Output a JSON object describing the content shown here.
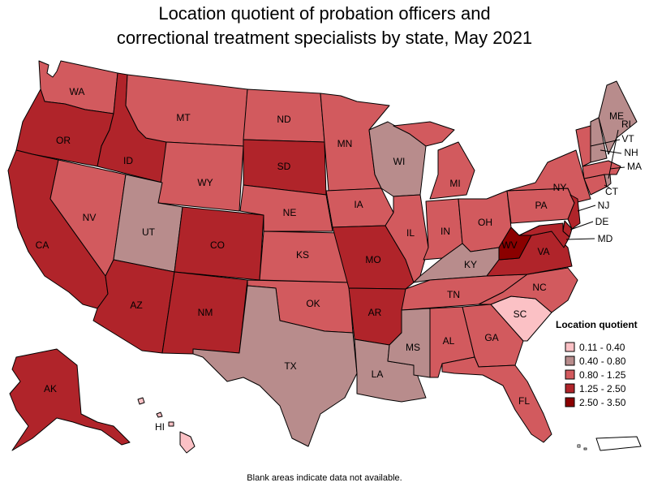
{
  "title_line1": "Location quotient of probation officers and",
  "title_line2": "correctional treatment specialists by state, May 2021",
  "note": "Blank areas indicate data not available.",
  "colors": {
    "c1": "#fbc1c5",
    "c2": "#b88c8c",
    "c3": "#d25a5e",
    "c4": "#b0242a",
    "c5": "#8b0000"
  },
  "legend": {
    "title": "Location quotient",
    "items": [
      {
        "label": "0.11 - 0.40",
        "color": "#fbc1c5"
      },
      {
        "label": "0.40 - 0.80",
        "color": "#b88c8c"
      },
      {
        "label": "0.80 - 1.25",
        "color": "#d25a5e"
      },
      {
        "label": "1.25 - 2.50",
        "color": "#b0242a"
      },
      {
        "label": "2.50 - 3.50",
        "color": "#8b0000"
      }
    ]
  },
  "states": {
    "WA": {
      "label": "WA",
      "class": "0.80 - 1.25"
    },
    "OR": {
      "label": "OR",
      "class": "1.25 - 2.50"
    },
    "CA": {
      "label": "CA",
      "class": "1.25 - 2.50"
    },
    "ID": {
      "label": "ID",
      "class": "1.25 - 2.50"
    },
    "NV": {
      "label": "NV",
      "class": "0.80 - 1.25"
    },
    "MT": {
      "label": "MT",
      "class": "0.80 - 1.25"
    },
    "WY": {
      "label": "WY",
      "class": "0.80 - 1.25"
    },
    "UT": {
      "label": "UT",
      "class": "0.40 - 0.80"
    },
    "AZ": {
      "label": "AZ",
      "class": "1.25 - 2.50"
    },
    "CO": {
      "label": "CO",
      "class": "1.25 - 2.50"
    },
    "NM": {
      "label": "NM",
      "class": "1.25 - 2.50"
    },
    "ND": {
      "label": "ND",
      "class": "0.80 - 1.25"
    },
    "SD": {
      "label": "SD",
      "class": "1.25 - 2.50"
    },
    "NE": {
      "label": "NE",
      "class": "0.80 - 1.25"
    },
    "KS": {
      "label": "KS",
      "class": "0.80 - 1.25"
    },
    "OK": {
      "label": "OK",
      "class": "0.80 - 1.25"
    },
    "TX": {
      "label": "TX",
      "class": "0.40 - 0.80"
    },
    "MN": {
      "label": "MN",
      "class": "0.80 - 1.25"
    },
    "IA": {
      "label": "IA",
      "class": "0.80 - 1.25"
    },
    "MO": {
      "label": "MO",
      "class": "1.25 - 2.50"
    },
    "AR": {
      "label": "AR",
      "class": "1.25 - 2.50"
    },
    "LA": {
      "label": "LA",
      "class": "0.40 - 0.80"
    },
    "WI": {
      "label": "WI",
      "class": "0.40 - 0.80"
    },
    "IL": {
      "label": "IL",
      "class": "0.80 - 1.25"
    },
    "MI": {
      "label": "MI",
      "class": "0.80 - 1.25"
    },
    "IN": {
      "label": "IN",
      "class": "0.80 - 1.25"
    },
    "OH": {
      "label": "OH",
      "class": "0.80 - 1.25"
    },
    "KY": {
      "label": "KY",
      "class": "0.40 - 0.80"
    },
    "TN": {
      "label": "TN",
      "class": "0.80 - 1.25"
    },
    "MS": {
      "label": "MS",
      "class": "0.40 - 0.80"
    },
    "AL": {
      "label": "AL",
      "class": "0.80 - 1.25"
    },
    "GA": {
      "label": "GA",
      "class": "0.80 - 1.25"
    },
    "FL": {
      "label": "FL",
      "class": "0.80 - 1.25"
    },
    "SC": {
      "label": "SC",
      "class": "0.11 - 0.40"
    },
    "NC": {
      "label": "NC",
      "class": "0.80 - 1.25"
    },
    "VA": {
      "label": "VA",
      "class": "1.25 - 2.50"
    },
    "WV": {
      "label": "WV",
      "class": "2.50 - 3.50"
    },
    "PA": {
      "label": "PA",
      "class": "0.80 - 1.25"
    },
    "NY": {
      "label": "NY",
      "class": "0.80 - 1.25"
    },
    "NJ": {
      "label": "NJ",
      "class": "1.25 - 2.50"
    },
    "DE": {
      "label": "DE",
      "class": "1.25 - 2.50"
    },
    "MD": {
      "label": "MD",
      "class": "1.25 - 2.50"
    },
    "CT": {
      "label": "CT",
      "class": "0.80 - 1.25"
    },
    "MA": {
      "label": "MA",
      "class": "0.80 - 1.25"
    },
    "VT": {
      "label": "VT",
      "class": "0.80 - 1.25"
    },
    "NH": {
      "label": "NH",
      "class": "0.40 - 0.80"
    },
    "ME": {
      "label": "ME",
      "class": "0.40 - 0.80"
    },
    "RI": {
      "label": "RI",
      "class": "0.40 - 0.80"
    },
    "AK": {
      "label": "AK",
      "class": "1.25 - 2.50"
    },
    "HI": {
      "label": "HI",
      "class": "0.11 - 0.40"
    },
    "PR": {
      "label": "",
      "class": ""
    }
  }
}
